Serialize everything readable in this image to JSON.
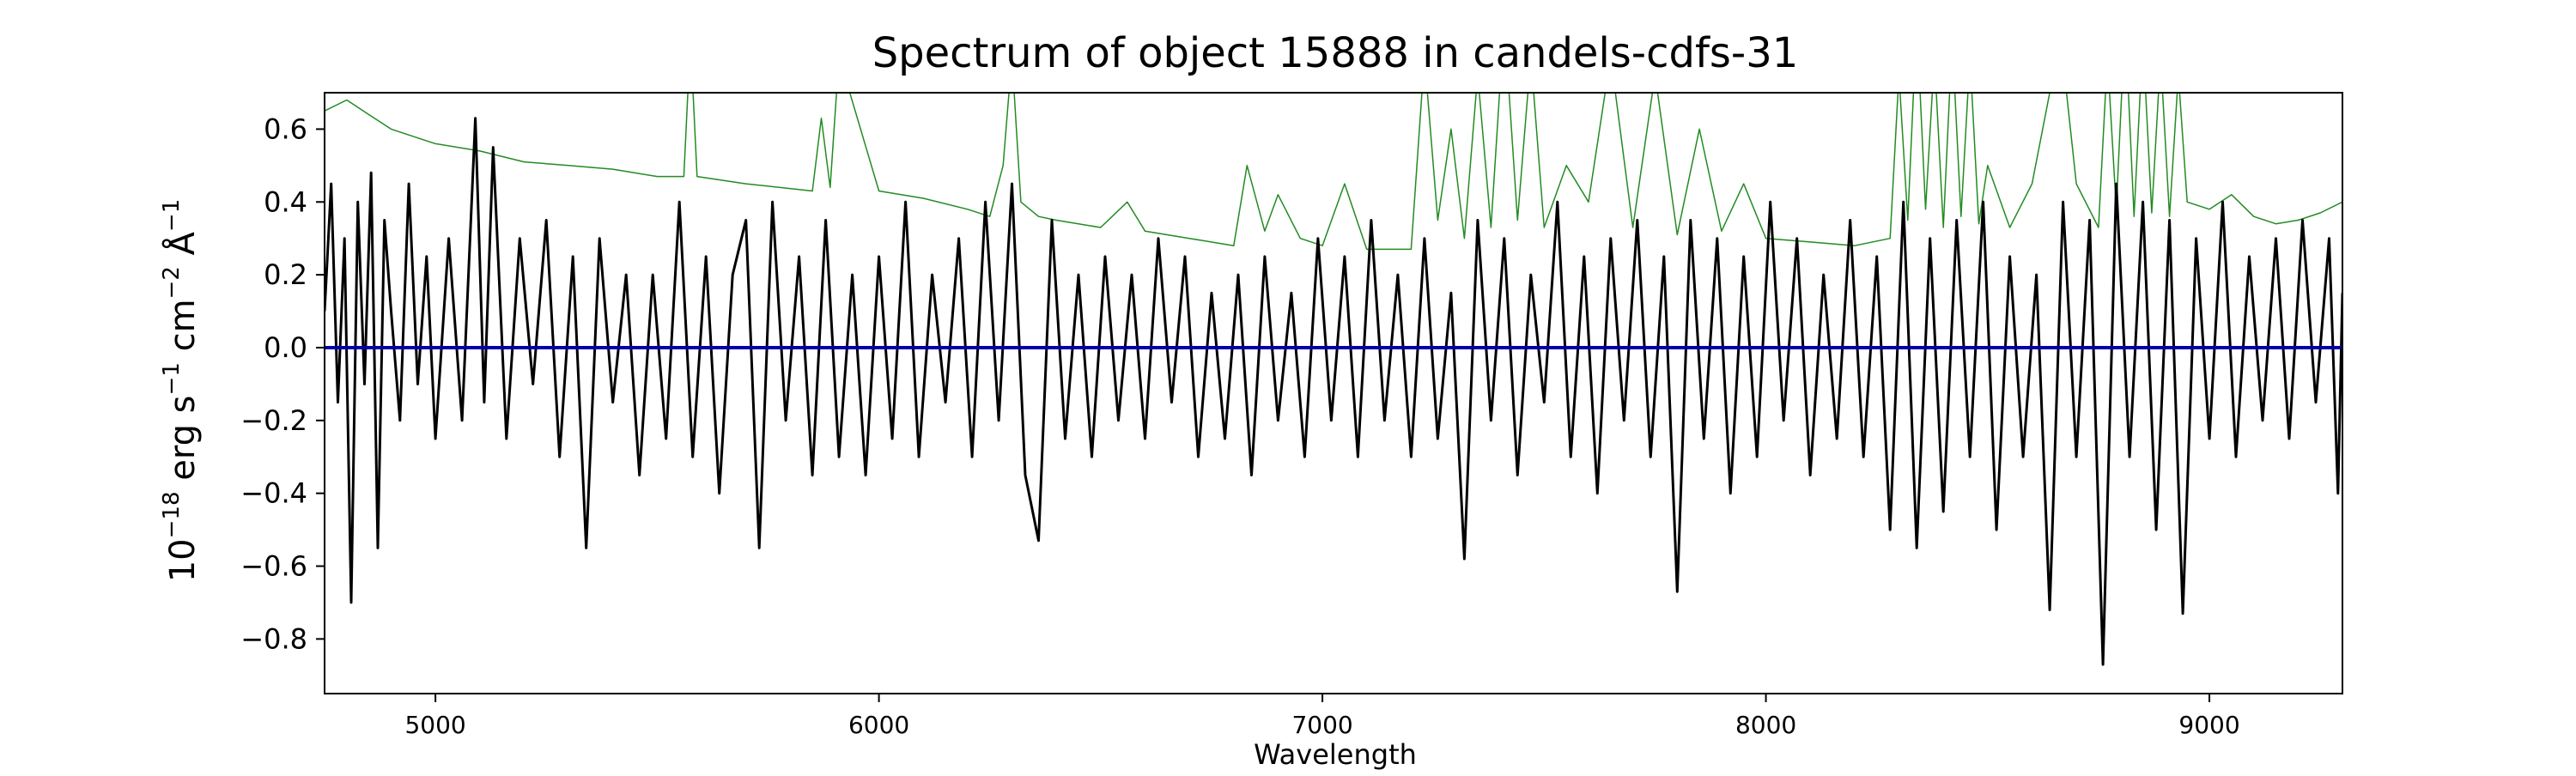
{
  "chart_data": {
    "type": "line",
    "title": "Spectrum of object 15888 in candels-cdfs-31",
    "xlabel": "Wavelength",
    "ylabel": {
      "prefix": "10",
      "prefix_exp": "−18",
      "unit1": " erg s",
      "unit1_exp": "−1",
      "unit2": " cm",
      "unit2_exp": "−2",
      "unit3": " Å",
      "unit3_exp": "−1"
    },
    "xlim": [
      4750,
      9300
    ],
    "ylim": [
      -0.95,
      0.7
    ],
    "x_ticks": [
      5000,
      6000,
      7000,
      8000,
      9000
    ],
    "x_tick_labels": [
      "5000",
      "6000",
      "7000",
      "8000",
      "9000"
    ],
    "y_ticks": [
      -0.8,
      -0.6,
      -0.4,
      -0.2,
      0.0,
      0.2,
      0.4,
      0.6
    ],
    "y_tick_labels": [
      "−0.8",
      "−0.6",
      "−0.4",
      "−0.2",
      "0.0",
      "0.2",
      "0.4",
      "0.6"
    ],
    "grid": false,
    "legend": "none",
    "series": [
      {
        "color": "#228b22",
        "description_role": "error",
        "x": [
          4750,
          4800,
          4850,
          4900,
          5000,
          5100,
          5200,
          5300,
          5400,
          5500,
          5560,
          5575,
          5590,
          5700,
          5850,
          5870,
          5890,
          5910,
          6000,
          6100,
          6200,
          6250,
          6280,
          6300,
          6320,
          6360,
          6400,
          6500,
          6560,
          6600,
          6700,
          6800,
          6830,
          6870,
          6900,
          6950,
          7000,
          7050,
          7100,
          7200,
          7230,
          7260,
          7290,
          7320,
          7350,
          7380,
          7410,
          7440,
          7470,
          7500,
          7550,
          7600,
          7650,
          7700,
          7750,
          7800,
          7850,
          7900,
          7950,
          8000,
          8100,
          8200,
          8280,
          8300,
          8320,
          8340,
          8360,
          8380,
          8400,
          8420,
          8440,
          8460,
          8480,
          8500,
          8550,
          8600,
          8640,
          8660,
          8700,
          8750,
          8770,
          8790,
          8810,
          8830,
          8850,
          8870,
          8890,
          8910,
          8930,
          8950,
          9000,
          9050,
          9100,
          9150,
          9200,
          9250,
          9300
        ],
        "y": [
          0.65,
          0.68,
          0.64,
          0.6,
          0.56,
          0.54,
          0.51,
          0.5,
          0.49,
          0.47,
          0.47,
          0.85,
          0.47,
          0.45,
          0.43,
          0.63,
          0.44,
          0.8,
          0.43,
          0.41,
          0.38,
          0.36,
          0.5,
          0.8,
          0.4,
          0.36,
          0.35,
          0.33,
          0.4,
          0.32,
          0.3,
          0.28,
          0.5,
          0.32,
          0.42,
          0.3,
          0.28,
          0.45,
          0.27,
          0.27,
          0.8,
          0.35,
          0.6,
          0.3,
          0.75,
          0.33,
          0.9,
          0.35,
          0.8,
          0.33,
          0.5,
          0.4,
          0.8,
          0.33,
          0.75,
          0.31,
          0.6,
          0.32,
          0.45,
          0.3,
          0.29,
          0.28,
          0.3,
          0.75,
          0.35,
          0.9,
          0.38,
          0.8,
          0.33,
          0.85,
          0.36,
          0.8,
          0.34,
          0.5,
          0.33,
          0.45,
          0.7,
          0.9,
          0.45,
          0.33,
          0.8,
          0.38,
          0.9,
          0.36,
          0.85,
          0.37,
          0.8,
          0.36,
          0.75,
          0.4,
          0.38,
          0.42,
          0.36,
          0.34,
          0.35,
          0.37,
          0.4
        ]
      },
      {
        "color": "#000000",
        "description_role": "flux",
        "x": [
          4750,
          4765,
          4780,
          4795,
          4810,
          4825,
          4840,
          4855,
          4870,
          4885,
          4900,
          4920,
          4940,
          4960,
          4980,
          5000,
          5030,
          5060,
          5090,
          5110,
          5130,
          5160,
          5190,
          5220,
          5250,
          5280,
          5310,
          5340,
          5370,
          5400,
          5430,
          5460,
          5490,
          5520,
          5550,
          5580,
          5610,
          5640,
          5670,
          5700,
          5730,
          5760,
          5790,
          5820,
          5850,
          5880,
          5910,
          5940,
          5970,
          6000,
          6030,
          6060,
          6090,
          6120,
          6150,
          6180,
          6210,
          6240,
          6270,
          6300,
          6330,
          6360,
          6390,
          6420,
          6450,
          6480,
          6510,
          6540,
          6570,
          6600,
          6630,
          6660,
          6690,
          6720,
          6750,
          6780,
          6810,
          6840,
          6870,
          6900,
          6930,
          6960,
          6990,
          7020,
          7050,
          7080,
          7110,
          7140,
          7170,
          7200,
          7230,
          7260,
          7290,
          7320,
          7350,
          7380,
          7410,
          7440,
          7470,
          7500,
          7530,
          7560,
          7590,
          7620,
          7650,
          7680,
          7710,
          7740,
          7770,
          7800,
          7830,
          7860,
          7890,
          7920,
          7950,
          7980,
          8010,
          8040,
          8070,
          8100,
          8130,
          8160,
          8190,
          8220,
          8250,
          8280,
          8310,
          8340,
          8370,
          8400,
          8430,
          8460,
          8490,
          8520,
          8550,
          8580,
          8610,
          8640,
          8670,
          8700,
          8730,
          8760,
          8790,
          8820,
          8850,
          8880,
          8910,
          8940,
          8970,
          9000,
          9030,
          9060,
          9090,
          9120,
          9150,
          9180,
          9210,
          9240,
          9270,
          9290,
          9300
        ],
        "y": [
          0.1,
          0.45,
          -0.15,
          0.3,
          -0.7,
          0.4,
          -0.1,
          0.48,
          -0.55,
          0.35,
          0.1,
          -0.2,
          0.45,
          -0.1,
          0.25,
          -0.25,
          0.3,
          -0.2,
          0.63,
          -0.15,
          0.55,
          -0.25,
          0.3,
          -0.1,
          0.35,
          -0.3,
          0.25,
          -0.55,
          0.3,
          -0.15,
          0.2,
          -0.35,
          0.2,
          -0.25,
          0.4,
          -0.3,
          0.25,
          -0.4,
          0.2,
          0.35,
          -0.55,
          0.4,
          -0.2,
          0.25,
          -0.35,
          0.35,
          -0.3,
          0.2,
          -0.35,
          0.25,
          -0.25,
          0.4,
          -0.3,
          0.2,
          -0.15,
          0.3,
          -0.3,
          0.4,
          -0.2,
          0.45,
          -0.35,
          -0.53,
          0.35,
          -0.25,
          0.2,
          -0.3,
          0.25,
          -0.2,
          0.2,
          -0.25,
          0.3,
          -0.15,
          0.25,
          -0.3,
          0.15,
          -0.25,
          0.2,
          -0.35,
          0.25,
          -0.2,
          0.15,
          -0.3,
          0.3,
          -0.2,
          0.25,
          -0.3,
          0.35,
          -0.2,
          0.2,
          -0.3,
          0.3,
          -0.25,
          0.15,
          -0.58,
          0.35,
          -0.2,
          0.3,
          -0.35,
          0.2,
          -0.15,
          0.4,
          -0.3,
          0.25,
          -0.4,
          0.3,
          -0.2,
          0.35,
          -0.3,
          0.25,
          -0.67,
          0.35,
          -0.25,
          0.3,
          -0.4,
          0.25,
          -0.3,
          0.4,
          -0.2,
          0.3,
          -0.35,
          0.2,
          -0.25,
          0.35,
          -0.3,
          0.25,
          -0.5,
          0.4,
          -0.55,
          0.3,
          -0.45,
          0.35,
          -0.3,
          0.4,
          -0.5,
          0.25,
          -0.3,
          0.2,
          -0.72,
          0.4,
          -0.3,
          0.35,
          -0.87,
          0.45,
          -0.3,
          0.4,
          -0.5,
          0.35,
          -0.73,
          0.3,
          -0.25,
          0.4,
          -0.3,
          0.25,
          -0.2,
          0.3,
          -0.25,
          0.35,
          -0.15,
          0.3,
          -0.4,
          0.15
        ]
      },
      {
        "color": "#0000aa",
        "description_role": "model",
        "x": [
          4750,
          9300
        ],
        "y": [
          0.0,
          0.0
        ]
      }
    ]
  }
}
